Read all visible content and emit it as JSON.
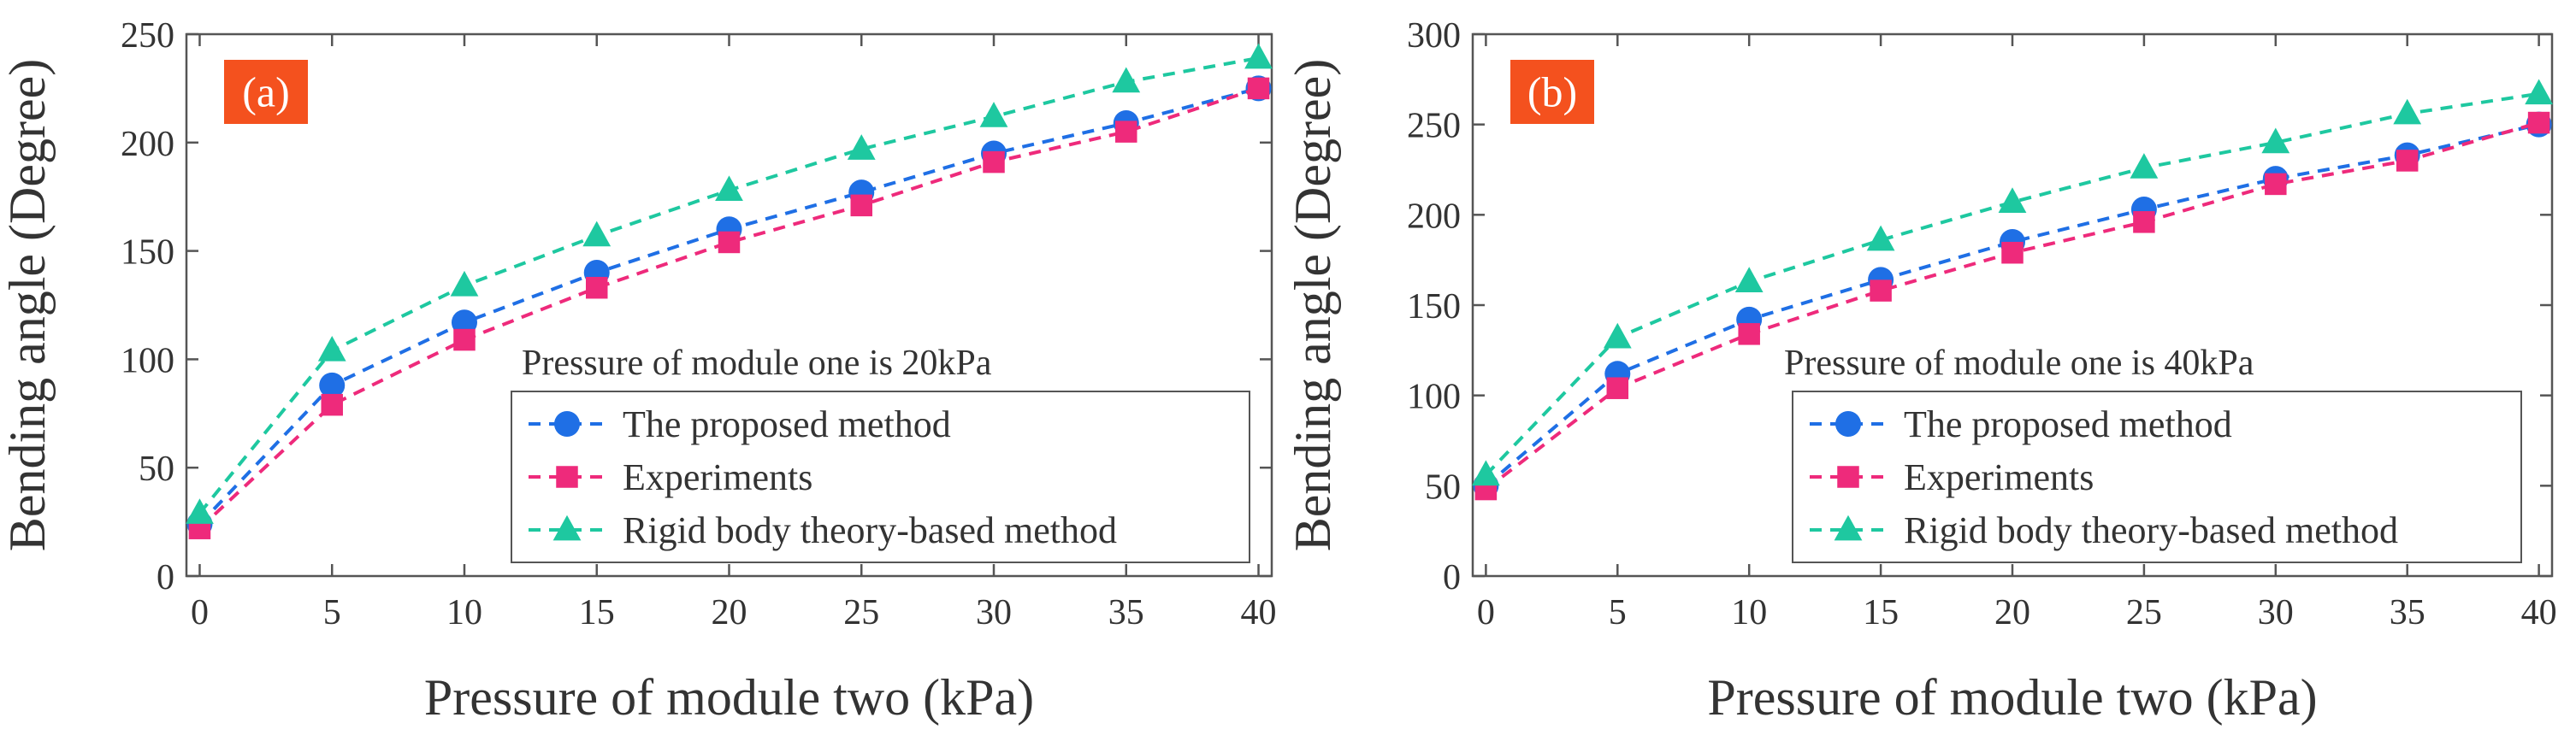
{
  "chart_data": [
    {
      "type": "line",
      "panel_label": "(a)",
      "annotation": "Pressure of module one is 20kPa",
      "xlabel": "Pressure of module two (kPa)",
      "ylabel": "Bending angle (Degree)",
      "xlim": [
        -0.5,
        40.5
      ],
      "ylim": [
        0,
        250
      ],
      "xticks": [
        0,
        5,
        10,
        15,
        20,
        25,
        30,
        35,
        40
      ],
      "yticks": [
        0,
        50,
        100,
        150,
        200,
        250
      ],
      "x": [
        0,
        5,
        10,
        15,
        20,
        25,
        30,
        35,
        40
      ],
      "legend_position": "lower-right",
      "series": [
        {
          "name": "The proposed method",
          "color": "#1f6fe5",
          "marker": "circle",
          "values": [
            24,
            88,
            117,
            140,
            160,
            177,
            195,
            209,
            225
          ]
        },
        {
          "name": "Experiments",
          "color": "#ee2a7b",
          "marker": "square",
          "values": [
            22,
            79,
            109,
            133,
            154,
            171,
            191,
            205,
            225
          ]
        },
        {
          "name": "Rigid body theory-based method",
          "color": "#1ec8a0",
          "marker": "triangle",
          "values": [
            29,
            104,
            134,
            157,
            178,
            197,
            212,
            228,
            239
          ]
        }
      ]
    },
    {
      "type": "line",
      "panel_label": "(b)",
      "annotation": "Pressure of module one is 40kPa",
      "xlabel": "Pressure of module two (kPa)",
      "ylabel": "Bending angle (Degree)",
      "xlim": [
        -0.5,
        40.5
      ],
      "ylim": [
        0,
        300
      ],
      "xticks": [
        0,
        5,
        10,
        15,
        20,
        25,
        30,
        35,
        40
      ],
      "yticks": [
        0,
        50,
        100,
        150,
        200,
        250,
        300
      ],
      "x": [
        0,
        5,
        10,
        15,
        20,
        25,
        30,
        35,
        40
      ],
      "legend_position": "lower-right",
      "series": [
        {
          "name": "The proposed method",
          "color": "#1f6fe5",
          "marker": "circle",
          "values": [
            50,
            112,
            142,
            164,
            185,
            203,
            220,
            233,
            250
          ]
        },
        {
          "name": "Experiments",
          "color": "#ee2a7b",
          "marker": "square",
          "values": [
            48,
            104,
            134,
            158,
            179,
            196,
            217,
            230,
            251
          ]
        },
        {
          "name": "Rigid body theory-based method",
          "color": "#1ec8a0",
          "marker": "triangle",
          "values": [
            56,
            132,
            163,
            186,
            207,
            226,
            240,
            256,
            267
          ]
        }
      ]
    }
  ],
  "colors": {
    "panel_tag_fill": "#f4511e",
    "axis_color": "#555555"
  }
}
